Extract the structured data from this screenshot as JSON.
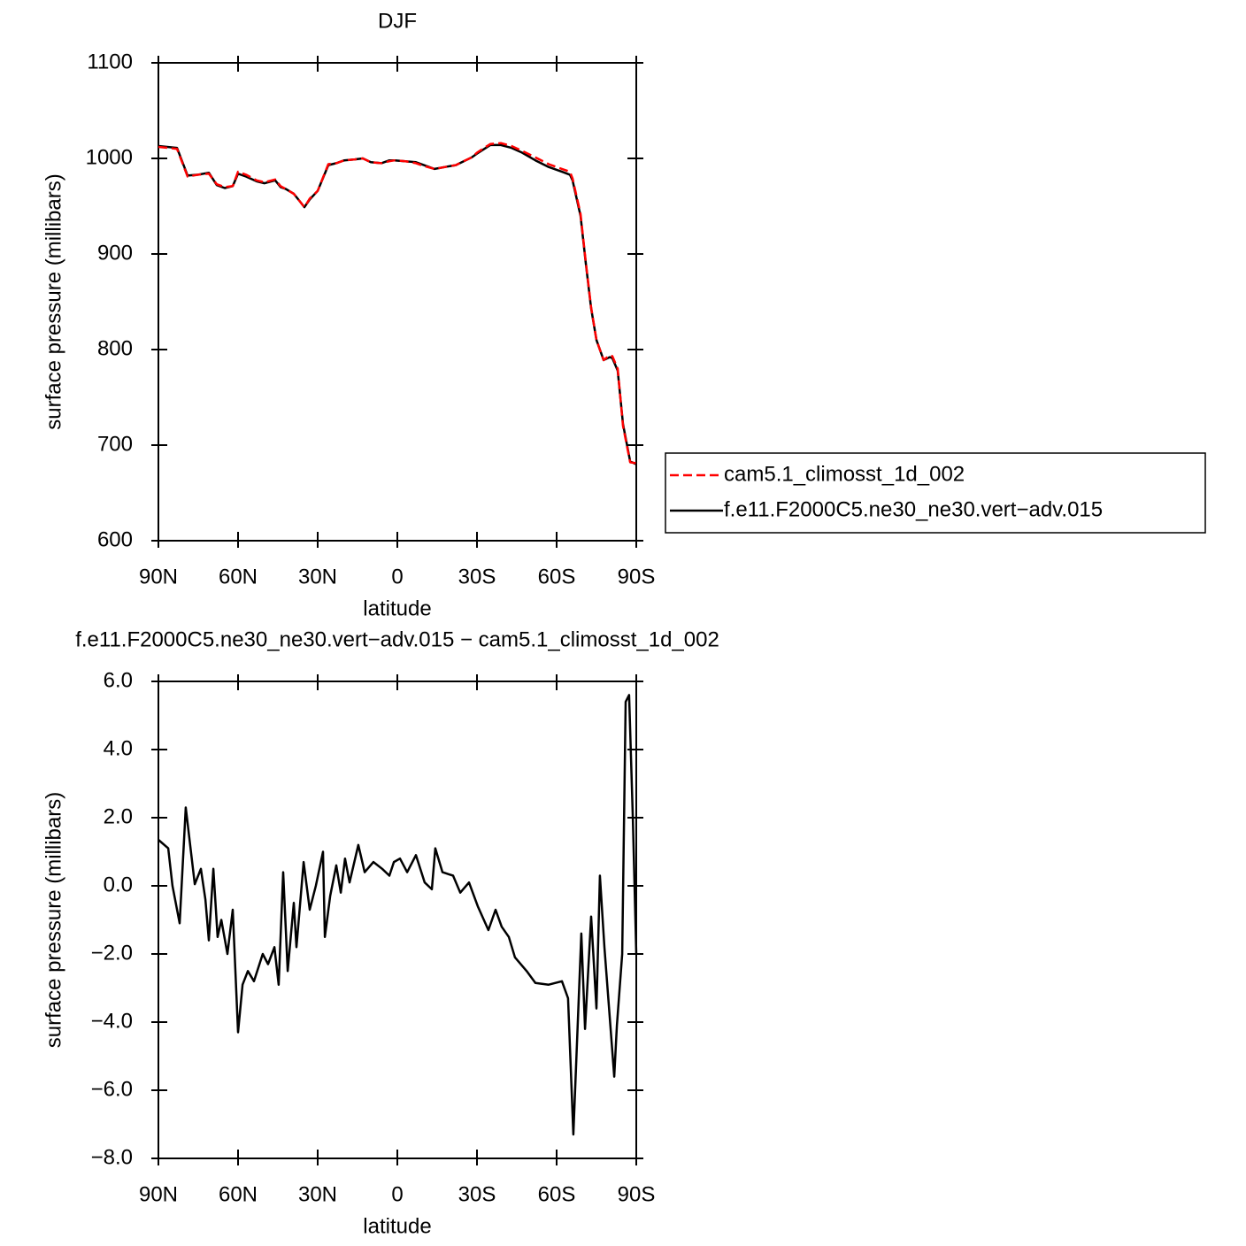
{
  "chart_data": [
    {
      "type": "line",
      "title": "DJF",
      "xlabel": "latitude",
      "ylabel": "surface pressure (millibars)",
      "x": [
        90,
        83,
        79,
        75,
        71,
        68,
        65,
        62,
        60,
        57,
        53,
        50,
        46,
        44,
        42,
        39,
        37,
        35,
        33,
        30,
        26,
        23,
        20,
        16,
        13,
        10,
        6,
        3,
        1,
        -3,
        -7,
        -10,
        -14,
        -18,
        -22,
        -25,
        -28,
        -30,
        -35,
        -39,
        -43,
        -47,
        -52,
        -57,
        -62,
        -65,
        -66,
        -69,
        -71,
        -73,
        -75,
        -77.7,
        -80,
        -81,
        -83,
        -85,
        -87.7,
        -90
      ],
      "series": [
        {
          "name": "cam5.1_climosst_1d_002",
          "color": "#ff0000",
          "linestyle": "dashed",
          "values": [
            1012,
            1010,
            981,
            983,
            984,
            973,
            970,
            971,
            986,
            983,
            977,
            975,
            978,
            971,
            968,
            963,
            956,
            949,
            958,
            966,
            994,
            995,
            998,
            999,
            1000,
            996,
            995,
            997,
            998,
            997,
            995,
            992,
            989,
            991,
            993,
            997,
            1001,
            1006,
            1015,
            1016,
            1013,
            1008,
            1001,
            994,
            989,
            986,
            979,
            942,
            891,
            844,
            810,
            789,
            794,
            793,
            780,
            720,
            682,
            681
          ]
        },
        {
          "name": "f.e11.F2000C5.ne30_ne30.vert−adv.015",
          "color": "#000000",
          "linestyle": "solid",
          "values": [
            1013,
            1011,
            982,
            983,
            985,
            972,
            969,
            971,
            984,
            981,
            976,
            974,
            977,
            970,
            968,
            963,
            956,
            949,
            957,
            966,
            993,
            995,
            998,
            999,
            1000,
            996,
            995,
            998,
            998,
            997,
            996,
            993,
            989,
            991,
            993,
            997,
            1001,
            1005,
            1014,
            1014,
            1011,
            1006,
            998,
            991,
            986,
            983,
            977,
            940,
            890,
            843,
            810,
            789,
            792,
            791,
            778,
            722,
            683,
            680
          ]
        }
      ],
      "xlim": [
        90,
        -90
      ],
      "xticks": [
        {
          "value": 90,
          "label": "90N"
        },
        {
          "value": 60,
          "label": "60N"
        },
        {
          "value": 30,
          "label": "30N"
        },
        0,
        {
          "value": -30,
          "label": "30S"
        },
        {
          "value": -60,
          "label": "60S"
        },
        {
          "value": -90,
          "label": "90S"
        }
      ],
      "ylim": [
        600,
        1100
      ],
      "yticks": [
        600,
        700,
        800,
        900,
        1000,
        1100
      ],
      "legend": "right"
    },
    {
      "type": "line",
      "title": "f.e11.F2000C5.ne30_ne30.vert−adv.015 − cam5.1_climosst_1d_002",
      "xlabel": "latitude",
      "ylabel": "surface pressure (millibars)",
      "x": [
        90,
        86.3,
        84.7,
        82,
        79.7,
        76.3,
        74,
        72.3,
        71,
        69.3,
        67.7,
        66.3,
        64,
        62,
        60,
        58.3,
        56.3,
        54,
        50.7,
        48.7,
        46.3,
        44.7,
        43,
        41.3,
        39,
        38,
        35.3,
        33,
        30.7,
        28,
        27.3,
        25.3,
        23,
        21.3,
        19.7,
        18,
        14.7,
        12.3,
        9,
        5.7,
        3,
        1.3,
        -1,
        -3.7,
        -7,
        -10.3,
        -13,
        -14.3,
        -17,
        -21,
        -23.7,
        -27,
        -30.3,
        -34.3,
        -37,
        -39.3,
        -42,
        -44.3,
        -48.7,
        -52,
        -57,
        -62,
        -64.3,
        -66.3,
        -69.3,
        -70.7,
        -73,
        -75,
        -76.3,
        -78,
        -81.7,
        -82.7,
        -84.7,
        -86,
        -87.3,
        -88.7,
        -90
      ],
      "values": [
        1.35,
        1.1,
        0.0,
        -1.1,
        2.3,
        0.05,
        0.5,
        -0.4,
        -1.6,
        0.5,
        -1.5,
        -1.0,
        -2.0,
        -0.7,
        -4.3,
        -2.9,
        -2.5,
        -2.8,
        -2.0,
        -2.3,
        -1.8,
        -2.9,
        0.4,
        -2.5,
        -0.5,
        -1.8,
        0.7,
        -0.7,
        0.0,
        1.0,
        -1.5,
        -0.3,
        0.6,
        -0.2,
        0.8,
        0.1,
        1.2,
        0.4,
        0.7,
        0.5,
        0.3,
        0.7,
        0.8,
        0.4,
        0.9,
        0.1,
        -0.1,
        1.1,
        0.4,
        0.3,
        -0.2,
        0.1,
        -0.6,
        -1.3,
        -0.7,
        -1.2,
        -1.5,
        -2.1,
        -2.5,
        -2.85,
        -2.9,
        -2.8,
        -3.3,
        -7.3,
        -1.4,
        -4.2,
        -0.9,
        -3.6,
        0.3,
        -1.8,
        -5.6,
        -4.1,
        -2.0,
        5.4,
        5.6,
        2.0,
        -2.0
      ],
      "color": "#000000",
      "xlim": [
        90,
        -90
      ],
      "xticks": [
        {
          "value": 90,
          "label": "90N"
        },
        {
          "value": 60,
          "label": "60N"
        },
        {
          "value": 30,
          "label": "30N"
        },
        0,
        {
          "value": -30,
          "label": "30S"
        },
        {
          "value": -60,
          "label": "60S"
        },
        {
          "value": -90,
          "label": "90S"
        }
      ],
      "ylim": [
        -8,
        6
      ],
      "yticks": [
        {
          "value": -8,
          "label": "−8.0"
        },
        {
          "value": -6,
          "label": "−6.0"
        },
        {
          "value": -4,
          "label": "−4.0"
        },
        {
          "value": -2,
          "label": "−2.0"
        },
        {
          "value": 0,
          "label": "0.0"
        },
        {
          "value": 2,
          "label": "2.0"
        },
        {
          "value": 4,
          "label": "4.0"
        },
        {
          "value": 6,
          "label": "6.0"
        }
      ]
    }
  ]
}
